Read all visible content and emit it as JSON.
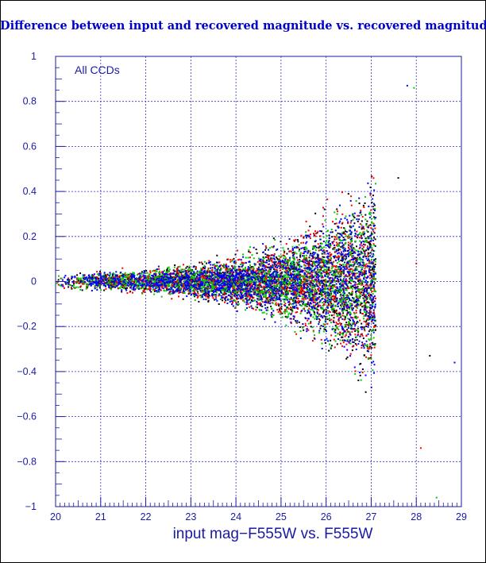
{
  "chart_data": {
    "type": "scatter",
    "title": "Difference between input and recovered magnitude vs. recovered magnitude",
    "xlabel": "input mag−F555W vs. F555W",
    "ylabel": "",
    "annotation": "All CCDs",
    "xlim": [
      20,
      29
    ],
    "ylim": [
      -1,
      1
    ],
    "xticks": [
      "20",
      "21",
      "22",
      "23",
      "24",
      "25",
      "26",
      "27",
      "28",
      "29"
    ],
    "yticks": [
      "1",
      "0.8",
      "0.6",
      "0.4",
      "0.2",
      "0",
      "−0.2",
      "−0.4",
      "−0.6",
      "−0.8",
      "−1"
    ],
    "grid": true,
    "series": [
      {
        "color": "#0000ff",
        "envelope": {
          "x": [
            20,
            21,
            22,
            23,
            24,
            25,
            26,
            26.5,
            27
          ],
          "half_width": [
            0.03,
            0.04,
            0.05,
            0.07,
            0.1,
            0.16,
            0.26,
            0.35,
            0.45
          ]
        },
        "cutoff": 27.1
      },
      {
        "color": "#00cc00",
        "envelope": {
          "x": [
            20,
            21,
            22,
            23,
            24,
            25,
            26,
            26.5,
            27
          ],
          "half_width": [
            0.03,
            0.04,
            0.05,
            0.07,
            0.1,
            0.16,
            0.26,
            0.35,
            0.45
          ]
        },
        "cutoff": 27.1
      },
      {
        "color": "#ff0000",
        "envelope": {
          "x": [
            20,
            21,
            22,
            23,
            24,
            25,
            26,
            26.5,
            27
          ],
          "half_width": [
            0.03,
            0.04,
            0.05,
            0.07,
            0.1,
            0.16,
            0.26,
            0.35,
            0.45
          ]
        },
        "cutoff": 27.1
      },
      {
        "color": "#000000",
        "envelope": {
          "x": [
            20,
            21,
            22,
            23,
            24,
            25,
            26,
            26.5,
            27
          ],
          "half_width": [
            0.03,
            0.04,
            0.05,
            0.07,
            0.1,
            0.16,
            0.26,
            0.35,
            0.45
          ]
        },
        "cutoff": 27.1
      }
    ],
    "outliers": [
      {
        "x": 27.8,
        "y": 0.87
      },
      {
        "x": 27.95,
        "y": 0.86
      },
      {
        "x": 28.0,
        "y": 0.08
      },
      {
        "x": 28.3,
        "y": -0.33
      },
      {
        "x": 28.85,
        "y": -0.36
      },
      {
        "x": 28.45,
        "y": -0.96
      },
      {
        "x": 28.1,
        "y": -0.74
      },
      {
        "x": 27.6,
        "y": 0.46
      }
    ]
  }
}
